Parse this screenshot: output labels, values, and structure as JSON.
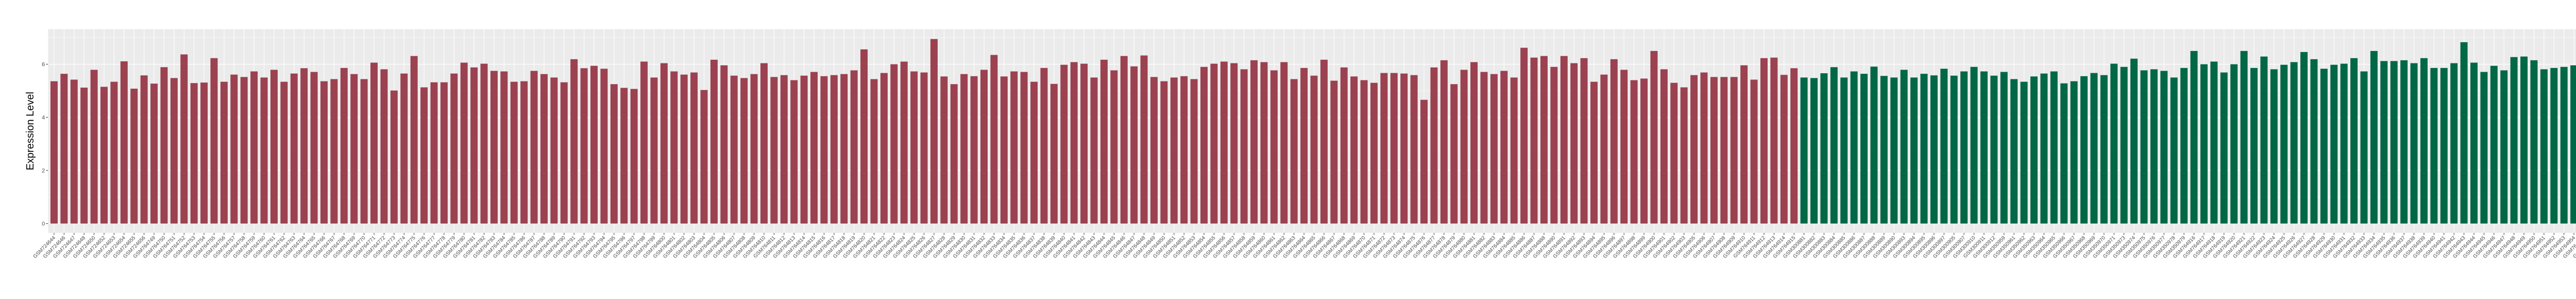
{
  "chart_data": {
    "type": "bar",
    "title": "",
    "xlabel": "",
    "ylabel": "Expression Level",
    "ylim": [
      -0.35,
      7.32
    ],
    "yticks": [
      0,
      2,
      4,
      6
    ],
    "grid": true,
    "legend": "none",
    "colors": {
      "panel_background": "#EBEBEB",
      "gridline": "#FFFFFF"
    },
    "groups": [
      {
        "color": "#9B4150",
        "categories": [
          "GSM724644",
          "GSM724646",
          "GSM724647",
          "GSM724648",
          "GSM724650",
          "GSM724652",
          "GSM724653",
          "GSM724654",
          "GSM724655",
          "GSM724656",
          "GSM764749",
          "GSM764750",
          "GSM764751",
          "GSM764752",
          "GSM764753",
          "GSM764754",
          "GSM764755",
          "GSM764756",
          "GSM764757",
          "GSM764758",
          "GSM764759",
          "GSM764760",
          "GSM764761",
          "GSM764762",
          "GSM764763",
          "GSM764764",
          "GSM764765",
          "GSM764766",
          "GSM764767",
          "GSM764768",
          "GSM764769",
          "GSM764770",
          "GSM764771",
          "GSM764772",
          "GSM764773",
          "GSM764774",
          "GSM764775",
          "GSM764776",
          "GSM764777",
          "GSM764778",
          "GSM764779",
          "GSM764780",
          "GSM764781",
          "GSM764782",
          "GSM764783",
          "GSM764784",
          "GSM764785",
          "GSM764786",
          "GSM764787",
          "GSM764788",
          "GSM764789",
          "GSM764790",
          "GSM764791",
          "GSM764792",
          "GSM764793",
          "GSM764794",
          "GSM764795",
          "GSM764796",
          "GSM764797",
          "GSM764798",
          "GSM764799",
          "GSM764800",
          "GSM764801",
          "GSM764802",
          "GSM764803",
          "GSM764804",
          "GSM764805",
          "GSM764806",
          "GSM764807",
          "GSM764808",
          "GSM764809",
          "GSM764810",
          "GSM764811",
          "GSM764812",
          "GSM764813",
          "GSM764814",
          "GSM764815",
          "GSM764816",
          "GSM764817",
          "GSM764818",
          "GSM764819",
          "GSM764820",
          "GSM764821",
          "GSM764822",
          "GSM764823",
          "GSM764824",
          "GSM764825",
          "GSM764826",
          "GSM764827",
          "GSM764828",
          "GSM764829",
          "GSM764830",
          "GSM764831",
          "GSM764832",
          "GSM764833",
          "GSM764834",
          "GSM764835",
          "GSM764836",
          "GSM764837",
          "GSM764838",
          "GSM764839",
          "GSM764840",
          "GSM764841",
          "GSM764842",
          "GSM764843",
          "GSM764844",
          "GSM764845",
          "GSM764846",
          "GSM764847",
          "GSM764848",
          "GSM764849",
          "GSM764850",
          "GSM764851",
          "GSM764852",
          "GSM764853",
          "GSM764854",
          "GSM764855",
          "GSM764856",
          "GSM764857",
          "GSM764858",
          "GSM764859",
          "GSM764860",
          "GSM764861",
          "GSM764862",
          "GSM764863",
          "GSM764864",
          "GSM764865",
          "GSM764866",
          "GSM764867",
          "GSM764868",
          "GSM764869",
          "GSM764870",
          "GSM764871",
          "GSM764872",
          "GSM764873",
          "GSM764874",
          "GSM764875",
          "GSM764876",
          "GSM764877",
          "GSM764878",
          "GSM764879",
          "GSM764880",
          "GSM764881",
          "GSM764882",
          "GSM764883",
          "GSM764884",
          "GSM764885",
          "GSM764886",
          "GSM764887",
          "GSM764888",
          "GSM764890",
          "GSM764891",
          "GSM764892",
          "GSM764893",
          "GSM764894",
          "GSM764895",
          "GSM764896",
          "GSM764897",
          "GSM764898",
          "GSM764899",
          "GSM764900",
          "GSM764901",
          "GSM764902",
          "GSM764903",
          "GSM764905",
          "GSM764906",
          "GSM764907",
          "GSM764908",
          "GSM764909",
          "GSM764910",
          "GSM764911",
          "GSM764912",
          "GSM764913",
          "GSM764914",
          "GSM764915"
        ],
        "values": [
          5.36,
          5.64,
          5.42,
          5.12,
          5.79,
          5.15,
          5.34,
          6.11,
          5.08,
          5.58,
          5.27,
          5.89,
          5.48,
          6.37,
          5.29,
          5.31,
          6.23,
          5.34,
          5.61,
          5.52,
          5.73,
          5.5,
          5.79,
          5.34,
          5.65,
          5.85,
          5.71,
          5.36,
          5.44,
          5.86,
          5.63,
          5.44,
          6.06,
          5.81,
          5.01,
          5.65,
          6.31,
          5.13,
          5.32,
          5.32,
          5.65,
          6.06,
          5.88,
          6.02,
          5.75,
          5.73,
          5.34,
          5.36,
          5.75,
          5.63,
          5.5,
          5.32,
          6.19,
          5.85,
          5.94,
          5.83,
          5.25,
          5.11,
          5.07,
          6.1,
          5.5,
          6.04,
          5.73,
          5.61,
          5.69,
          5.03,
          6.17,
          5.96,
          5.57,
          5.48,
          5.63,
          6.04,
          5.52,
          5.59,
          5.4,
          5.57,
          5.71,
          5.55,
          5.59,
          5.63,
          5.77,
          6.56,
          5.44,
          5.67,
          6.0,
          6.1,
          5.73,
          5.69,
          6.95,
          5.54,
          5.25,
          5.63,
          5.55,
          5.79,
          6.35,
          5.54,
          5.73,
          5.71,
          5.34,
          5.86,
          5.26,
          5.98,
          6.08,
          6.02,
          5.5,
          6.17,
          5.77,
          6.31,
          5.92,
          6.33,
          5.52,
          5.36,
          5.5,
          5.55,
          5.44,
          5.9,
          6.02,
          6.1,
          6.04,
          5.81,
          6.15,
          6.08,
          5.77,
          6.08,
          5.44,
          5.86,
          5.57,
          6.17,
          5.38,
          5.88,
          5.54,
          5.4,
          5.3,
          5.67,
          5.67,
          5.65,
          5.59,
          4.66,
          5.88,
          6.15,
          5.25,
          5.79,
          6.08,
          5.71,
          5.63,
          5.75,
          5.5,
          6.62,
          6.25,
          6.31,
          5.9,
          6.31,
          6.04,
          6.23,
          5.34,
          5.61,
          6.19,
          5.79,
          5.4,
          5.46,
          6.5,
          5.81,
          5.3,
          5.13,
          5.59,
          5.69,
          5.52,
          5.52,
          5.52,
          5.96,
          5.42,
          6.23,
          6.25,
          5.6,
          5.85
        ]
      },
      {
        "color": "#006846",
        "categories": [
          "GSM300881",
          "GSM300882",
          "GSM300883",
          "GSM300884",
          "GSM300885",
          "GSM300886",
          "GSM300887",
          "GSM300888",
          "GSM300889",
          "GSM300890",
          "GSM300893",
          "GSM300894",
          "GSM300895",
          "GSM300896",
          "GSM300897",
          "GSM300905",
          "GSM300907",
          "GSM300910",
          "GSM300911",
          "GSM300912",
          "GSM350959",
          "GSM350961",
          "GSM350962",
          "GSM350963",
          "GSM350964",
          "GSM350965",
          "GSM350966",
          "GSM350967",
          "GSM350968",
          "GSM350969",
          "GSM350970",
          "GSM350971",
          "GSM350973",
          "GSM350974",
          "GSM350975",
          "GSM350976",
          "GSM350977",
          "GSM350978",
          "GSM350979",
          "GSM764916",
          "GSM764917",
          "GSM764918",
          "GSM764919",
          "GSM764920",
          "GSM764921",
          "GSM764922",
          "GSM764923",
          "GSM764924",
          "GSM764925",
          "GSM764926",
          "GSM764927",
          "GSM764928",
          "GSM764929",
          "GSM764930",
          "GSM764931",
          "GSM764932",
          "GSM764933",
          "GSM764934",
          "GSM764935",
          "GSM764936",
          "GSM764937",
          "GSM764938",
          "GSM764939",
          "GSM764940",
          "GSM764941",
          "GSM764942",
          "GSM764943",
          "GSM764944",
          "GSM764945",
          "GSM764946",
          "GSM764947",
          "GSM764948",
          "GSM764949",
          "GSM764950",
          "GSM764951",
          "GSM764952",
          "GSM764953",
          "GSM764954",
          "GSM764955",
          "GSM764956",
          "GSM764957",
          "GSM764958",
          "GSM764959",
          "GSM764960",
          "GSM80748",
          "GSM80749"
        ],
        "values": [
          5.5,
          5.48,
          5.66,
          5.89,
          5.5,
          5.73,
          5.64,
          5.91,
          5.56,
          5.5,
          5.79,
          5.5,
          5.64,
          5.58,
          5.83,
          5.57,
          5.73,
          5.9,
          5.73,
          5.57,
          5.71,
          5.44,
          5.34,
          5.54,
          5.65,
          5.73,
          5.28,
          5.36,
          5.55,
          5.67,
          5.59,
          6.02,
          5.9,
          6.21,
          5.77,
          5.81,
          5.75,
          5.5,
          5.86,
          6.5,
          6.0,
          6.1,
          5.69,
          6.0,
          6.5,
          5.86,
          6.29,
          5.81,
          5.98,
          6.08,
          6.46,
          6.19,
          5.83,
          5.98,
          6.02,
          6.23,
          5.73,
          6.5,
          6.12,
          6.12,
          6.15,
          6.04,
          6.23,
          5.86,
          5.86,
          6.04,
          6.83,
          6.06,
          5.71,
          5.94,
          5.77,
          6.27,
          6.29,
          6.15,
          5.81,
          5.86,
          5.9,
          5.96,
          5.57,
          6.43,
          5.63,
          5.67,
          5.69,
          6.04,
          5.36,
          5.88
        ]
      }
    ]
  }
}
